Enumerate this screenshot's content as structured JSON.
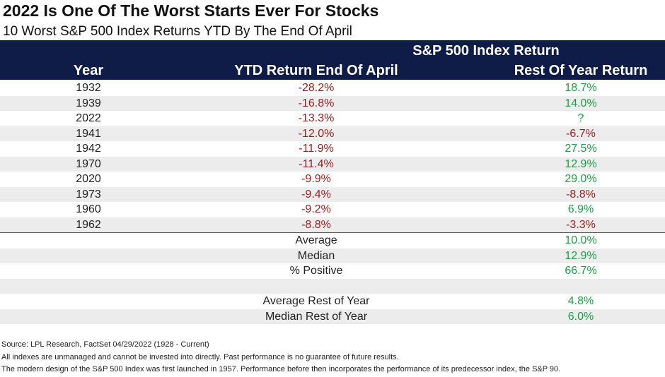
{
  "header": {
    "title": "2022 Is One Of The Worst Starts Ever For Stocks",
    "subtitle": "10 Worst S&P 500 Index Returns YTD By The End Of April"
  },
  "table": {
    "group_header": "S&P 500 Index Return",
    "col_year": "Year",
    "col_ytd": "YTD Return End Of April",
    "col_rest": "Rest Of Year Return",
    "rows": [
      {
        "year": "1932",
        "ytd": "-28.2%",
        "rest": "18.7%"
      },
      {
        "year": "1939",
        "ytd": "-16.8%",
        "rest": "14.0%"
      },
      {
        "year": "2022",
        "ytd": "-13.3%",
        "rest": "?"
      },
      {
        "year": "1941",
        "ytd": "-12.0%",
        "rest": "-6.7%"
      },
      {
        "year": "1942",
        "ytd": "-11.9%",
        "rest": "27.5%"
      },
      {
        "year": "1970",
        "ytd": "-11.4%",
        "rest": "12.9%"
      },
      {
        "year": "2020",
        "ytd": "-9.9%",
        "rest": "29.0%"
      },
      {
        "year": "1973",
        "ytd": "-9.4%",
        "rest": "-8.8%"
      },
      {
        "year": "1960",
        "ytd": "-9.2%",
        "rest": "6.9%"
      },
      {
        "year": "1962",
        "ytd": "-8.8%",
        "rest": "-3.3%"
      }
    ],
    "stats": [
      {
        "label": "Average",
        "value": "10.0%"
      },
      {
        "label": "Median",
        "value": "12.9%"
      },
      {
        "label": "% Positive",
        "value": "66.7%"
      },
      {
        "label": "",
        "value": ""
      },
      {
        "label": "Average Rest of Year",
        "value": "4.8%"
      },
      {
        "label": "Median Rest of Year",
        "value": "6.0%"
      }
    ]
  },
  "footer": {
    "source": "Source: LPL Research, FactSet 04/29/2022 (1928 - Current)",
    "disclaimer": "All indexes are unmanaged and cannot be invested into directly. Past performance is no guarantee of future results.",
    "note": "The modern design of the S&P 500 Index was first launched in 1957. Performance before then incorporates the performance of its predecessor index, the S&P 90."
  },
  "colors": {
    "header_bg": "#0f1c47",
    "negative": "#9b1c1c",
    "positive": "#1e9e45",
    "row_alt": "#ececec"
  }
}
